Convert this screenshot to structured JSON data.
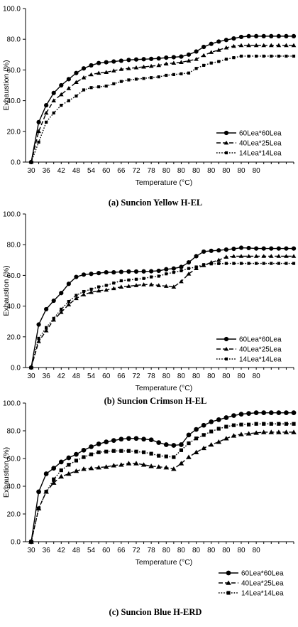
{
  "chart_data": [
    {
      "type": "line",
      "caption": "(a) Suncion Yellow H-EL",
      "xlabel": "Temperature (°C)",
      "ylabel": "Exhaustion (%)",
      "ylim": [
        0,
        100
      ],
      "yticks": [
        "0.0",
        "20.0",
        "40.0",
        "60.0",
        "80.0",
        "100.0"
      ],
      "x_tick_labels": [
        "30",
        "36",
        "42",
        "48",
        "54",
        "60",
        "66",
        "72",
        "78",
        "80",
        "80",
        "80",
        "80",
        "80",
        "80",
        "80"
      ],
      "legend": "bottom-right",
      "series": [
        {
          "name": "60Lea*60Lea",
          "marker": "circle",
          "line": "solid",
          "values": [
            0,
            26,
            37,
            45,
            50,
            54,
            58,
            61,
            63,
            64.5,
            65,
            65.5,
            66,
            66.5,
            66.8,
            67,
            67.2,
            67.5,
            68,
            68.3,
            68.7,
            70,
            72,
            75,
            77,
            78.5,
            79.5,
            80.5,
            81.5,
            82,
            82,
            82,
            82,
            82,
            82,
            82
          ]
        },
        {
          "name": "40Lea*25Lea",
          "marker": "triangle",
          "line": "dashed",
          "values": [
            0,
            20,
            32,
            40,
            44,
            48,
            52,
            55,
            57,
            58,
            58.5,
            59.5,
            60.5,
            61,
            61.5,
            62,
            62.5,
            63,
            64,
            64.5,
            65,
            66,
            67,
            69.5,
            71.5,
            73,
            74.5,
            75.5,
            76,
            76,
            76,
            76,
            76,
            76,
            76,
            76
          ]
        },
        {
          "name": "14Lea*14Lea",
          "marker": "square",
          "line": "dotted",
          "values": [
            0,
            13,
            26,
            32,
            37,
            40,
            43,
            47,
            48.5,
            49,
            49.5,
            51,
            52.5,
            53.5,
            54,
            54.5,
            55,
            55.5,
            56.5,
            57,
            57.5,
            58,
            61,
            63,
            64.5,
            65.5,
            67,
            68,
            69,
            69,
            69,
            69,
            69,
            69,
            69,
            69
          ]
        }
      ]
    },
    {
      "type": "line",
      "caption": "(b) Suncion Crimson H-EL",
      "xlabel": "Temperature (°C)",
      "ylabel": "Exhaustion (%)",
      "ylim": [
        0,
        100
      ],
      "yticks": [
        "0.0",
        "20.0",
        "40.0",
        "60.0",
        "80.0",
        "100.0"
      ],
      "x_tick_labels": [
        "30",
        "36",
        "42",
        "48",
        "54",
        "60",
        "66",
        "72",
        "78",
        "80",
        "80",
        "80",
        "80",
        "80",
        "80",
        "80"
      ],
      "legend": "bottom-right",
      "series": [
        {
          "name": "60Lea*60Lea",
          "marker": "circle",
          "line": "solid",
          "values": [
            0,
            28,
            38,
            43.5,
            48.5,
            54.5,
            59,
            60.5,
            61,
            61.5,
            62,
            62,
            62.3,
            62.5,
            62.5,
            62.6,
            62.7,
            63,
            64,
            64.5,
            65.5,
            68.5,
            72.5,
            75.5,
            76,
            76.3,
            76.8,
            77.3,
            78,
            77.8,
            77.5,
            77.5,
            77.5,
            77.5,
            77.5,
            77.5
          ]
        },
        {
          "name": "40Lea*25Lea",
          "marker": "triangle",
          "line": "dashed",
          "values": [
            0,
            17,
            24,
            31,
            36,
            41,
            45,
            47.5,
            49,
            50,
            50.5,
            51.5,
            52.5,
            53,
            53.5,
            54,
            54,
            53.5,
            53,
            52.5,
            56,
            61,
            64.5,
            66.5,
            68.5,
            70,
            72,
            72.5,
            72.5,
            72.5,
            72.5,
            72.5,
            72.5,
            72.5,
            72.5,
            72.5
          ]
        },
        {
          "name": "14Lea*14Lea",
          "marker": "square",
          "line": "dotted",
          "values": [
            0,
            19,
            26,
            32,
            38,
            43,
            47,
            49.5,
            51,
            52.5,
            53.5,
            55,
            56.5,
            57,
            57.5,
            58,
            59,
            59.5,
            61,
            62,
            63,
            64.5,
            65.5,
            67,
            67.5,
            67.7,
            67.8,
            67.8,
            67.8,
            67.8,
            67.8,
            67.8,
            67.8,
            67.8,
            67.8,
            67.8
          ]
        }
      ]
    },
    {
      "type": "line",
      "caption": "(c)  Suncion Blue H-ERD",
      "xlabel": "Temperature (°C)",
      "ylabel": "Exhaustion (%)",
      "ylim": [
        0,
        100
      ],
      "yticks": [
        "0.0",
        "20.0",
        "40.0",
        "60.0",
        "80.0",
        "100.0"
      ],
      "x_tick_labels": [
        "30",
        "36",
        "42",
        "48",
        "54",
        "60",
        "66",
        "72",
        "78",
        "80",
        "80",
        "80",
        "80",
        "80",
        "80",
        "80"
      ],
      "legend": "bottom-right",
      "series": [
        {
          "name": "60Lea*60Lea",
          "marker": "circle",
          "line": "solid",
          "values": [
            0,
            36,
            49,
            53,
            57.5,
            60.5,
            63,
            66,
            68.5,
            70.5,
            72,
            73,
            74,
            74.5,
            74.5,
            74,
            73.5,
            71.5,
            70,
            69.5,
            70,
            77,
            81,
            84,
            86.5,
            88,
            89.5,
            91,
            92,
            92.5,
            93,
            93,
            93,
            93,
            93,
            93
          ]
        },
        {
          "name": "40Lea*25Lea",
          "marker": "triangle",
          "line": "dashed",
          "values": [
            0,
            24,
            36,
            42.5,
            47,
            49,
            51,
            52.5,
            53,
            53.5,
            54,
            55,
            55.5,
            56.5,
            56.5,
            55.5,
            54.5,
            54,
            53.5,
            52.5,
            56.5,
            61,
            64.5,
            67.5,
            70,
            72,
            74.5,
            76.5,
            77.5,
            78,
            78.5,
            79,
            79,
            79,
            79,
            79
          ]
        },
        {
          "name": "14Lea*14Lea",
          "marker": "square",
          "line": "dotted",
          "values": [
            0,
            24,
            36,
            45,
            51.5,
            55.5,
            58.5,
            61,
            63,
            64.5,
            65,
            65.5,
            65.5,
            65.5,
            65,
            64.5,
            63.5,
            62,
            61.5,
            61,
            66,
            71,
            74.5,
            77,
            79.5,
            81.5,
            83,
            84,
            84.5,
            84.5,
            85,
            85,
            85,
            85,
            85,
            85
          ]
        }
      ]
    }
  ]
}
